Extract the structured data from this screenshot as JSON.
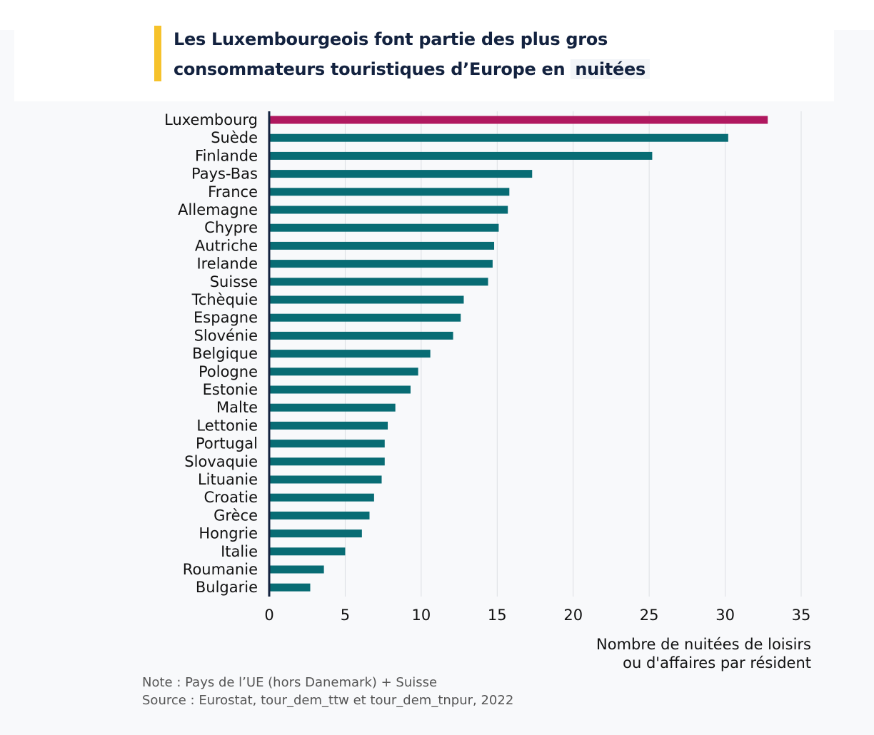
{
  "title": {
    "line1": "Les Luxembourgeois font partie des plus gros",
    "line2_prefix": "consommateurs touristiques d’Europe en",
    "line2_highlight": "nuitées"
  },
  "colors": {
    "highlight_bar": "#b0185f",
    "bar": "#086c74",
    "accent": "#f6c22b",
    "title_text": "#13223f"
  },
  "chart_data": {
    "type": "bar",
    "orientation": "horizontal",
    "title": "Les Luxembourgeois font partie des plus gros consommateurs touristiques d’Europe en nuitées",
    "xlabel": "Nombre de nuitées de loisirs ou d'affaires par résident",
    "ylabel": "",
    "xlim": [
      0,
      35
    ],
    "xticks": [
      0,
      5,
      10,
      15,
      20,
      25,
      30,
      35
    ],
    "grid": true,
    "highlight": "Luxembourg",
    "categories": [
      "Luxembourg",
      "Suède",
      "Finlande",
      "Pays-Bas",
      "France",
      "Allemagne",
      "Chypre",
      "Autriche",
      "Irelande",
      "Suisse",
      "Tchèquie",
      "Espagne",
      "Slovénie",
      "Belgique",
      "Pologne",
      "Estonie",
      "Malte",
      "Lettonie",
      "Portugal",
      "Slovaquie",
      "Lituanie",
      "Croatie",
      "Grèce",
      "Hongrie",
      "Italie",
      "Roumanie",
      "Bulgarie"
    ],
    "values": [
      32.8,
      30.2,
      25.2,
      17.3,
      15.8,
      15.7,
      15.1,
      14.8,
      14.7,
      14.4,
      12.8,
      12.6,
      12.1,
      10.6,
      9.8,
      9.3,
      8.3,
      7.8,
      7.6,
      7.6,
      7.4,
      6.9,
      6.6,
      6.1,
      5.0,
      3.6,
      2.7
    ]
  },
  "axis_label": {
    "line1": "Nombre de nuitées de loisirs",
    "line2": "ou d'affaires par résident"
  },
  "footer": {
    "note": "Note : Pays de l’UE (hors Danemark) + Suisse",
    "source": "Source : Eurostat, tour_dem_ttw et tour_dem_tnpur, 2022"
  }
}
